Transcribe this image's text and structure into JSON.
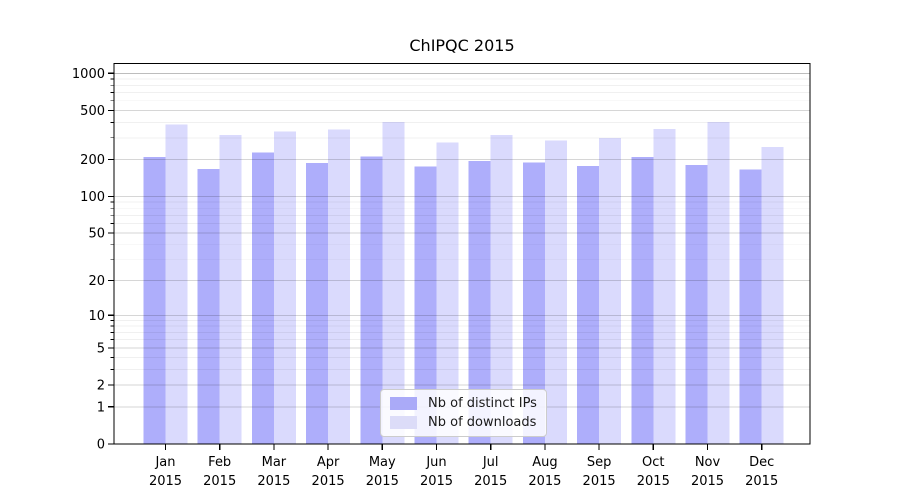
{
  "figure": {
    "background": "#ffffff",
    "axis_color": "#000000"
  },
  "chart_data": {
    "type": "bar",
    "title": "ChIPQC 2015",
    "categories": [
      "Jan 2015",
      "Feb 2015",
      "Mar 2015",
      "Apr 2015",
      "May 2015",
      "Jun 2015",
      "Jul 2015",
      "Aug 2015",
      "Sep 2015",
      "Oct 2015",
      "Nov 2015",
      "Dec 2015"
    ],
    "series": [
      {
        "name": "Nb of distinct IPs",
        "color": "#aaaaf8",
        "values": [
          209,
          167,
          227,
          187,
          211,
          175,
          195,
          188,
          177,
          209,
          181,
          166
        ]
      },
      {
        "name": "Nb of downloads",
        "color": "#dcdcf8",
        "values": [
          386,
          316,
          336,
          349,
          403,
          274,
          316,
          284,
          299,
          353,
          404,
          252
        ]
      }
    ],
    "xlabel": "",
    "ylabel": "",
    "yscale": "log1p",
    "ylim": [
      0,
      1000
    ],
    "yticks": [
      0,
      1,
      2,
      5,
      10,
      20,
      50,
      100,
      200,
      500,
      1000
    ],
    "grid": "both",
    "legend_position": "inside-lower-center"
  }
}
